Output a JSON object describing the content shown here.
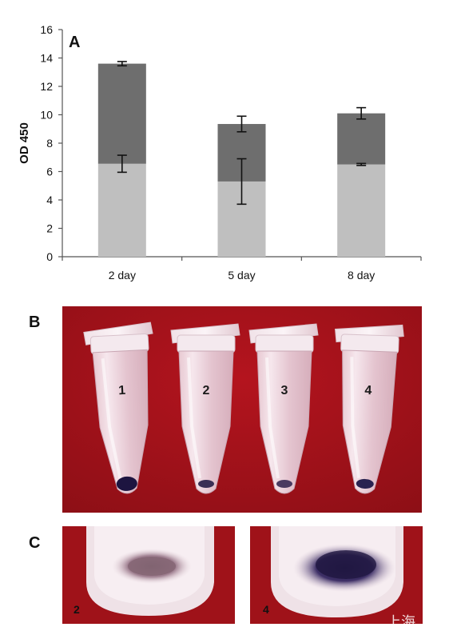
{
  "panels": {
    "a_label": "A",
    "b_label": "B",
    "c_label": "C"
  },
  "chart_data": {
    "type": "bar",
    "stacked": true,
    "categories": [
      "2 day",
      "5 day",
      "8 day"
    ],
    "series": [
      {
        "values": [
          6.55,
          5.3,
          6.5
        ],
        "errors": [
          0.6,
          1.6,
          0.07
        ],
        "color": "#bfbfbf"
      },
      {
        "values": [
          7.05,
          4.05,
          3.6
        ],
        "errors": [
          0.15,
          0.55,
          0.4
        ],
        "color": "#6e6e6e"
      }
    ],
    "ylabel": "OD 450",
    "ylim": [
      0,
      16
    ],
    "yticks": [
      0,
      2,
      4,
      6,
      8,
      10,
      12,
      14,
      16
    ],
    "grid": false
  },
  "photo_b": {
    "background_color": "#a8131b",
    "tubes": [
      "1",
      "2",
      "3",
      "4"
    ]
  },
  "photo_c": {
    "crops": [
      "2",
      "4"
    ]
  },
  "watermark": "上海"
}
